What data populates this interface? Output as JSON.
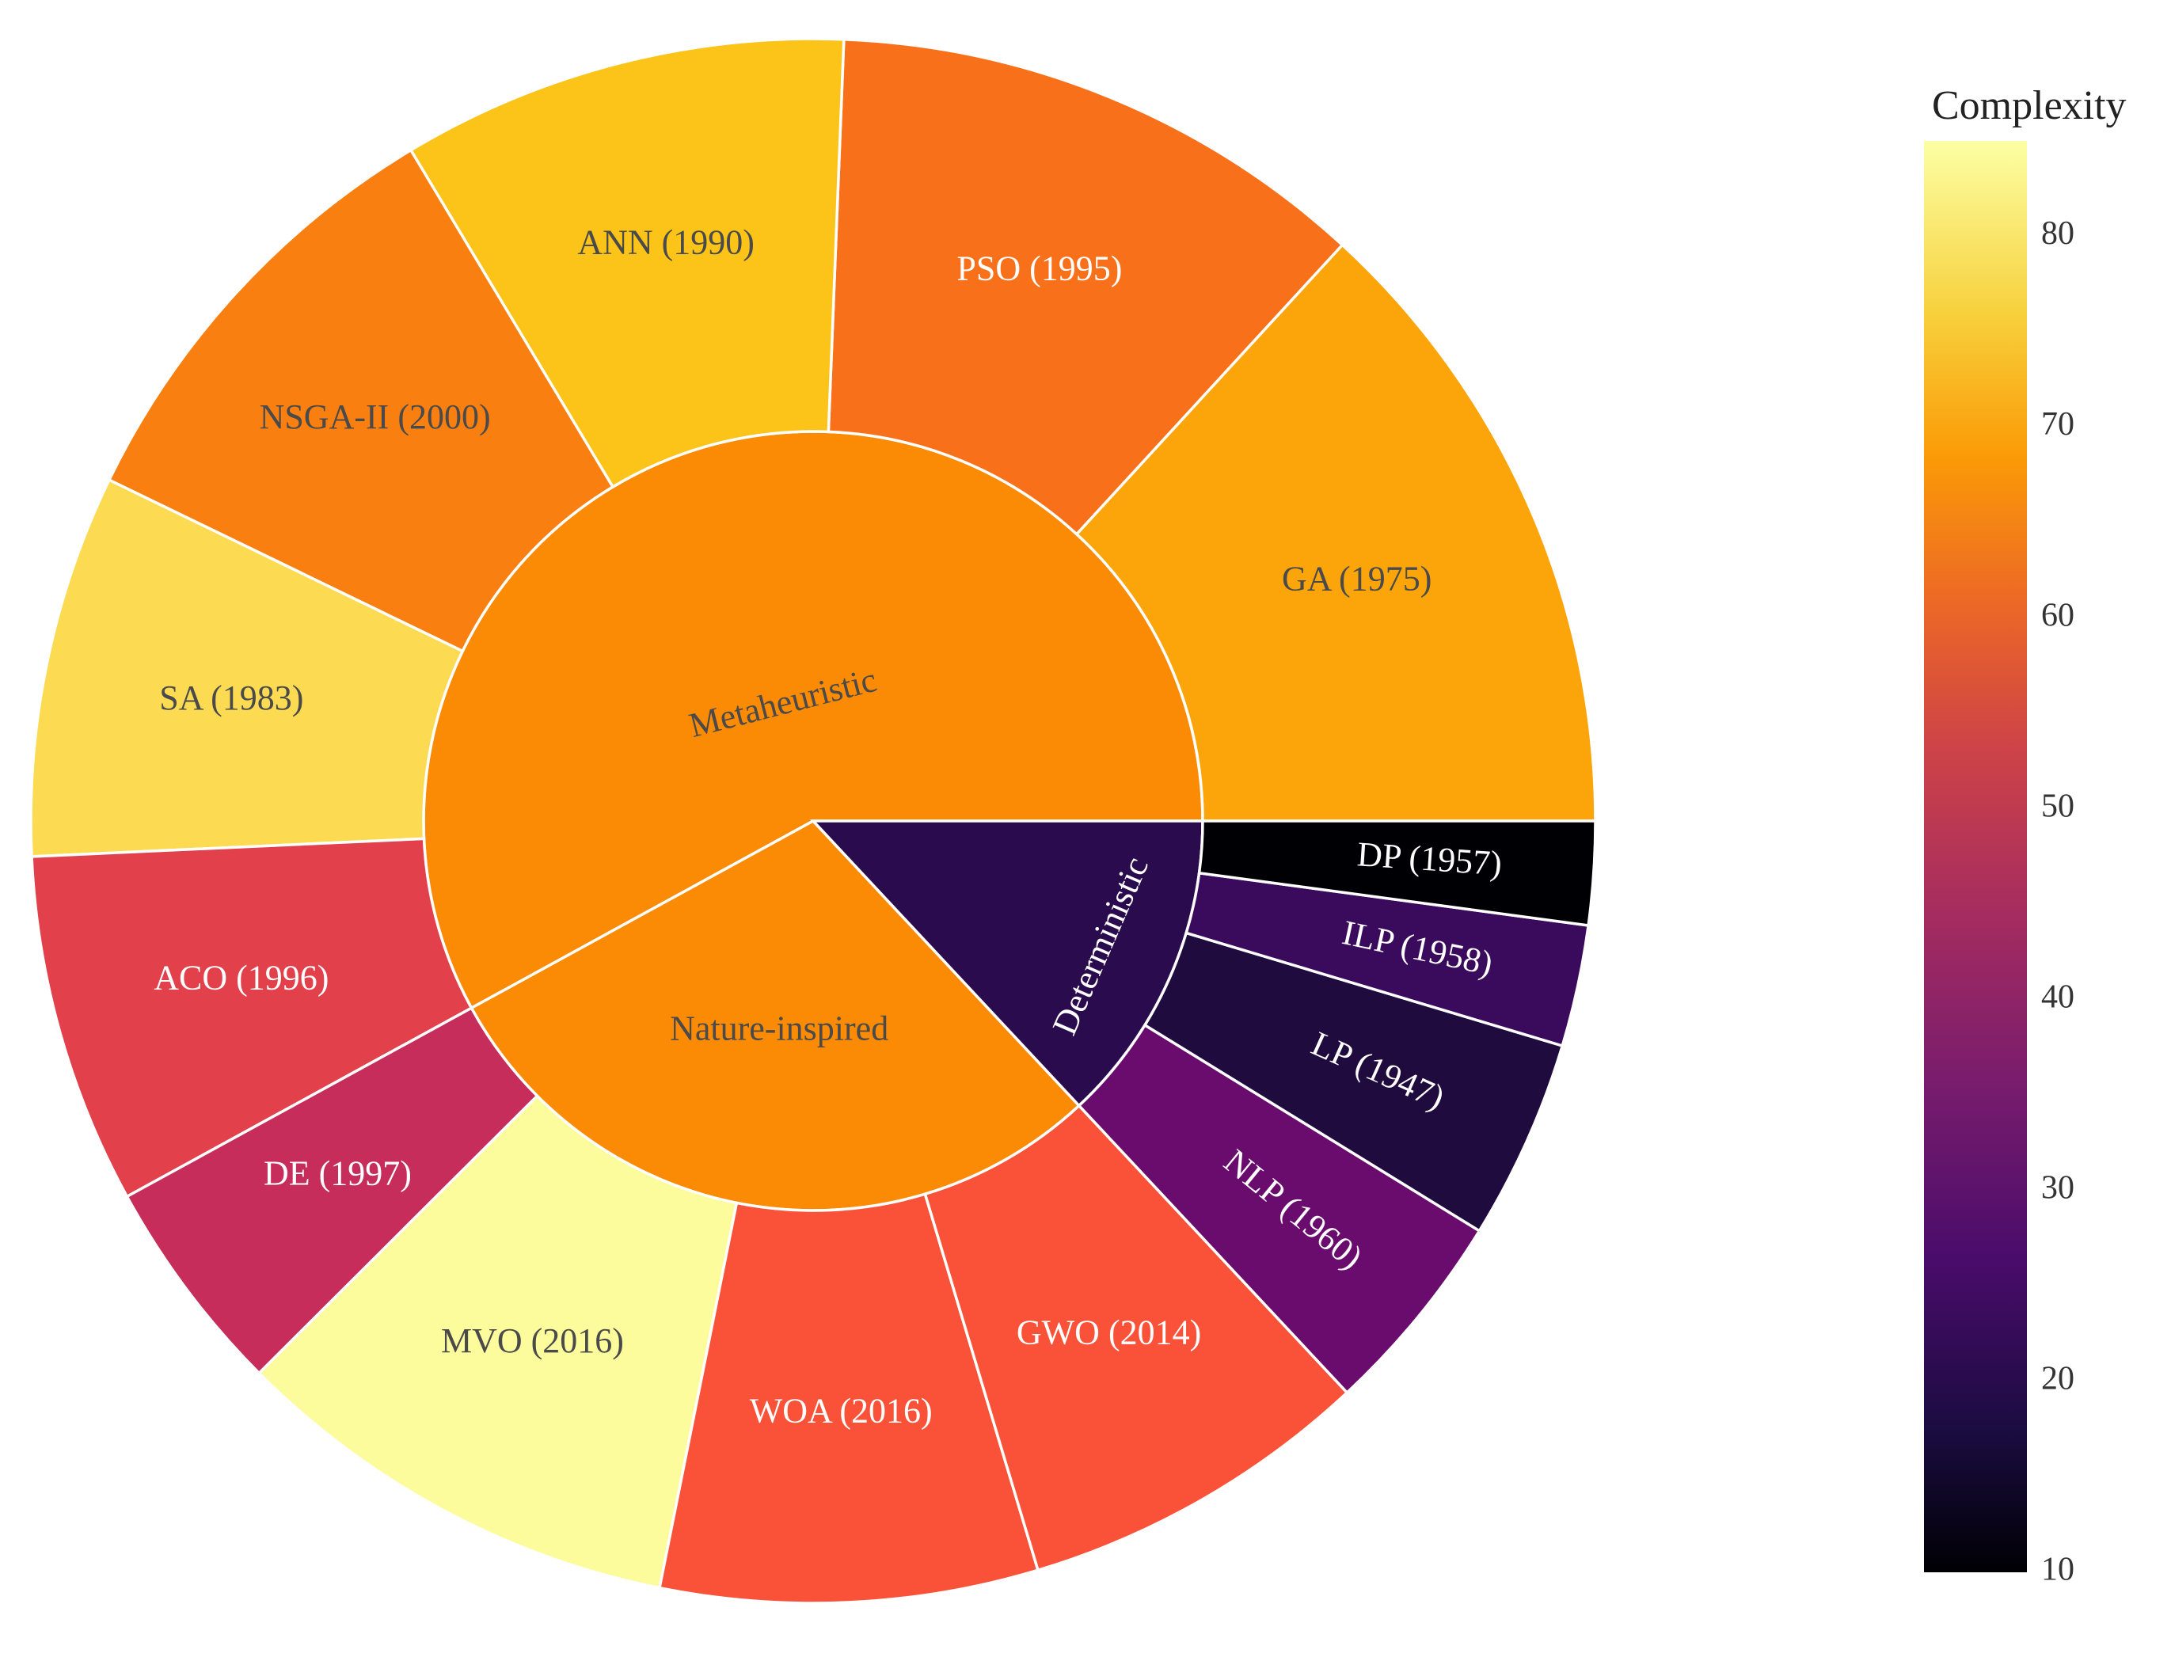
{
  "chart_data": {
    "type": "sunburst",
    "colorbar": {
      "title": "Complexity",
      "range": [
        10,
        85
      ],
      "ticks": [
        10,
        20,
        30,
        40,
        50,
        60,
        70,
        80
      ]
    },
    "inner": [
      {
        "name": "Metaheuristic",
        "value": 6,
        "complexity": 66
      },
      {
        "name": "Nature-inspired",
        "value": 3,
        "complexity": 66
      },
      {
        "name": "Deterministic",
        "value": 1.35,
        "complexity": 21
      }
    ],
    "outer": [
      {
        "label": "GA (1975)",
        "parent": "Metaheuristic",
        "value": 1.0,
        "complexity": 70,
        "color": "#fca50a"
      },
      {
        "label": "PSO (1995)",
        "parent": "Metaheuristic",
        "value": 0.85,
        "complexity": 63,
        "color": "#f8711a"
      },
      {
        "label": "ANN (1990)",
        "parent": "Metaheuristic",
        "value": 0.7,
        "complexity": 75,
        "color": "#fcc418"
      },
      {
        "label": "NSGA-II (2000)",
        "parent": "Metaheuristic",
        "value": 0.7,
        "complexity": 66,
        "color": "#f98010"
      },
      {
        "label": "SA (1983)",
        "parent": "Metaheuristic",
        "value": 0.6,
        "complexity": 80,
        "color": "#fcdb53"
      },
      {
        "label": "ACO (1996)",
        "parent": "Metaheuristic",
        "value": 0.55,
        "complexity": 52,
        "color": "#e2404a"
      },
      {
        "label": "DE (1997)",
        "parent": "Nature-inspired",
        "value": 0.48,
        "complexity": 48,
        "color": "#c62d5a"
      },
      {
        "label": "MVO (2016)",
        "parent": "Nature-inspired",
        "value": 1.0,
        "complexity": 85,
        "color": "#fcfc9d"
      },
      {
        "label": "WOA (2016)",
        "parent": "Nature-inspired",
        "value": 0.83,
        "complexity": 58,
        "color": "#fa5238"
      },
      {
        "label": "GWO (2014)",
        "parent": "Nature-inspired",
        "value": 0.78,
        "complexity": 58,
        "color": "#fa5238"
      },
      {
        "label": "NLP (1960)",
        "parent": "Deterministic",
        "value": 0.34,
        "complexity": 31,
        "color": "#6a0b6e"
      },
      {
        "label": "LP (1947)",
        "parent": "Deterministic",
        "value": 0.33,
        "complexity": 18,
        "color": "#1f0b3e"
      },
      {
        "label": "ILP (1958)",
        "parent": "Deterministic",
        "value": 0.2,
        "complexity": 27,
        "color": "#3a0b5c"
      },
      {
        "label": "DP (1957)",
        "parent": "Deterministic",
        "value": 0.17,
        "complexity": 10,
        "color": "#000004"
      }
    ],
    "inner_colors": {
      "Metaheuristic": "#fb8a04",
      "Nature-inspired": "#fb8a04",
      "Deterministic": "#2a0c4e"
    }
  }
}
